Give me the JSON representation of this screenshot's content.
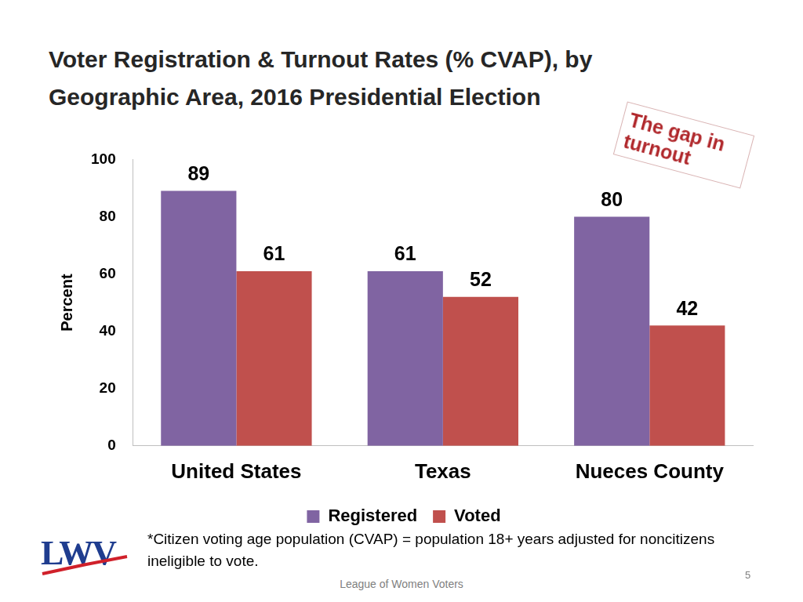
{
  "chart_data": {
    "type": "bar",
    "title": "Voter Registration & Turnout Rates (% CVAP), by Geographic Area, 2016 Presidential Election",
    "y_label": "Percent",
    "categories": [
      "United States",
      "Texas",
      "Nueces County"
    ],
    "series": [
      {
        "name": "Registered",
        "color": "#8064a2",
        "values": [
          89,
          61,
          80
        ]
      },
      {
        "name": "Voted",
        "color": "#c0504d",
        "values": [
          61,
          52,
          42
        ]
      }
    ],
    "ylim": [
      0,
      100
    ],
    "yticks": [
      0,
      20,
      40,
      60,
      80,
      100
    ],
    "grid": false,
    "legend": "bottom",
    "data_labels": true,
    "annotations": [
      "The gap in turnout"
    ]
  },
  "footnote": "*Citizen voting age population (CVAP) = population 18+ years adjusted for noncitizens ineligible to vote.",
  "footer": "League of Women Voters",
  "page_number": 5,
  "logo": "LWV"
}
